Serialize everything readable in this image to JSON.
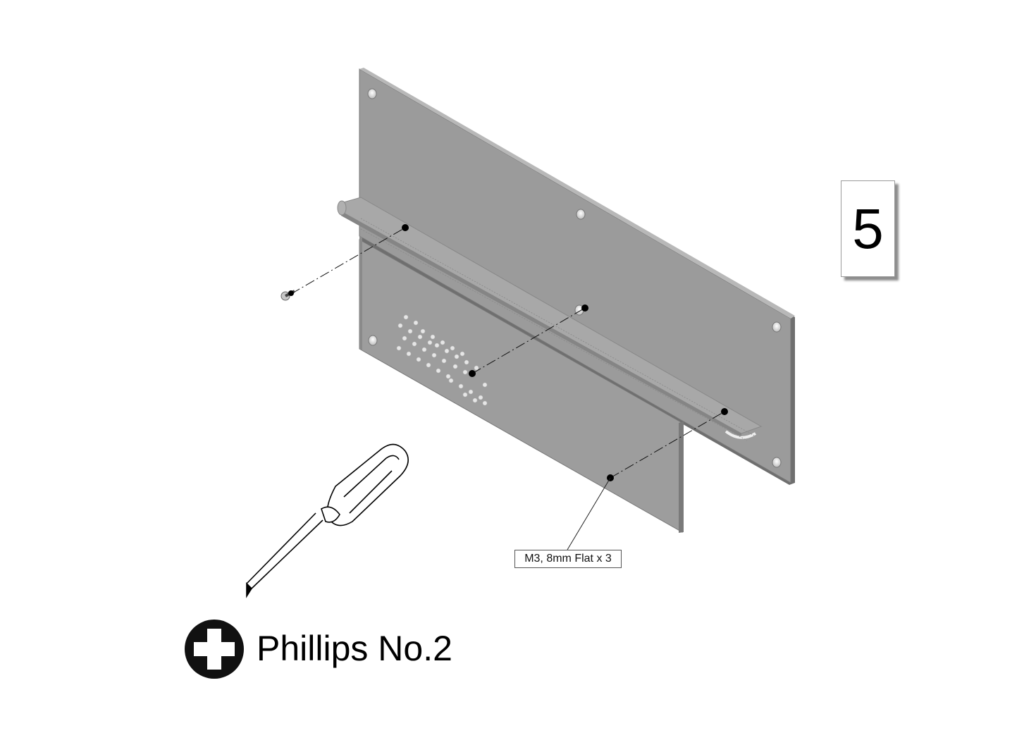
{
  "step": {
    "number": "5"
  },
  "callout": {
    "label": "M3, 8mm Flat x 3"
  },
  "tool": {
    "label": "Phillips No.2",
    "icon": "phillips-head-icon"
  },
  "colors": {
    "panel": "#9a9a9a",
    "panel_edge": "#6f6f6f",
    "screw": "#000000",
    "hole": "#eeeeee"
  }
}
